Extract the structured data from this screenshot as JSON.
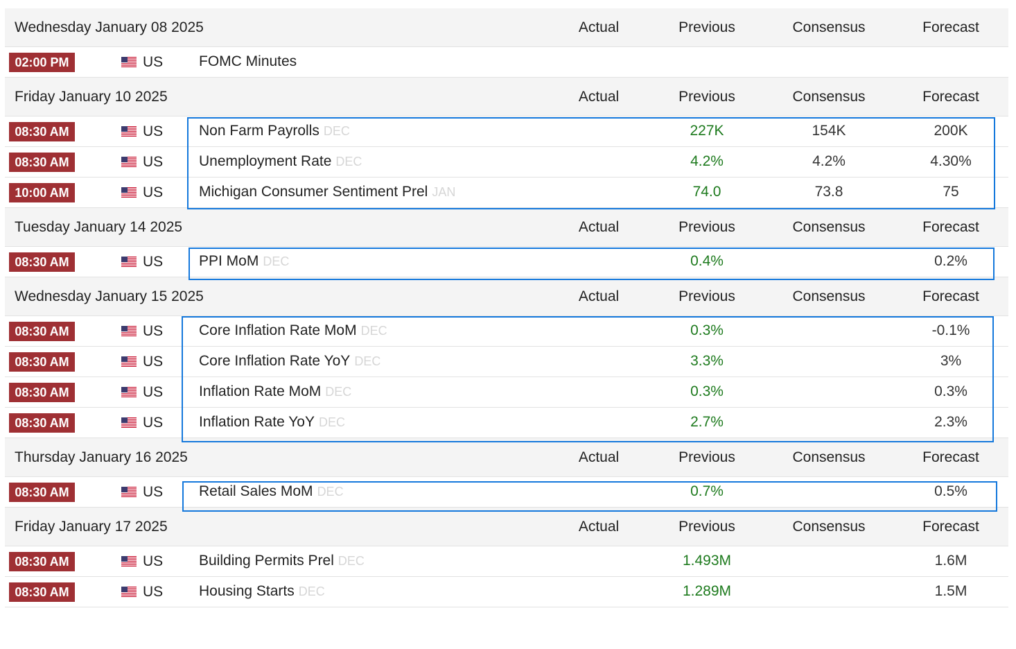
{
  "columns": {
    "actual": "Actual",
    "previous": "Previous",
    "consensus": "Consensus",
    "forecast": "Forecast"
  },
  "sections": [
    {
      "date": "Wednesday January 08 2025",
      "events": [
        {
          "time": "02:00 PM",
          "country": "US",
          "name": "FOMC Minutes",
          "ref": "",
          "actual": "",
          "previous": "",
          "consensus": "",
          "forecast": ""
        }
      ]
    },
    {
      "date": "Friday January 10 2025",
      "events": [
        {
          "time": "08:30 AM",
          "country": "US",
          "name": "Non Farm Payrolls",
          "ref": "DEC",
          "actual": "",
          "previous": "227K",
          "consensus": "154K",
          "forecast": "200K"
        },
        {
          "time": "08:30 AM",
          "country": "US",
          "name": "Unemployment Rate",
          "ref": "DEC",
          "actual": "",
          "previous": "4.2%",
          "consensus": "4.2%",
          "forecast": "4.30%"
        },
        {
          "time": "10:00 AM",
          "country": "US",
          "name": "Michigan Consumer Sentiment Prel",
          "ref": "JAN",
          "actual": "",
          "previous": "74.0",
          "consensus": "73.8",
          "forecast": "75"
        }
      ]
    },
    {
      "date": "Tuesday January 14 2025",
      "events": [
        {
          "time": "08:30 AM",
          "country": "US",
          "name": "PPI MoM",
          "ref": "DEC",
          "actual": "",
          "previous": "0.4%",
          "consensus": "",
          "forecast": "0.2%"
        }
      ]
    },
    {
      "date": "Wednesday January 15 2025",
      "events": [
        {
          "time": "08:30 AM",
          "country": "US",
          "name": "Core Inflation Rate MoM",
          "ref": "DEC",
          "actual": "",
          "previous": "0.3%",
          "consensus": "",
          "forecast": "-0.1%"
        },
        {
          "time": "08:30 AM",
          "country": "US",
          "name": "Core Inflation Rate YoY",
          "ref": "DEC",
          "actual": "",
          "previous": "3.3%",
          "consensus": "",
          "forecast": "3%"
        },
        {
          "time": "08:30 AM",
          "country": "US",
          "name": "Inflation Rate MoM",
          "ref": "DEC",
          "actual": "",
          "previous": "0.3%",
          "consensus": "",
          "forecast": "0.3%"
        },
        {
          "time": "08:30 AM",
          "country": "US",
          "name": "Inflation Rate YoY",
          "ref": "DEC",
          "actual": "",
          "previous": "2.7%",
          "consensus": "",
          "forecast": "2.3%"
        }
      ]
    },
    {
      "date": "Thursday January 16 2025",
      "events": [
        {
          "time": "08:30 AM",
          "country": "US",
          "name": "Retail Sales MoM",
          "ref": "DEC",
          "actual": "",
          "previous": "0.7%",
          "consensus": "",
          "forecast": "0.5%"
        }
      ]
    },
    {
      "date": "Friday January 17 2025",
      "events": [
        {
          "time": "08:30 AM",
          "country": "US",
          "name": "Building Permits Prel",
          "ref": "DEC",
          "actual": "",
          "previous": "1.493M",
          "consensus": "",
          "forecast": "1.6M"
        },
        {
          "time": "08:30 AM",
          "country": "US",
          "name": "Housing Starts",
          "ref": "DEC",
          "actual": "",
          "previous": "1.289M",
          "consensus": "",
          "forecast": "1.5M"
        }
      ]
    }
  ],
  "highlight_color": "#1478dc",
  "time_badge_color": "#9f3034",
  "previous_value_color": "#1d7a1d"
}
